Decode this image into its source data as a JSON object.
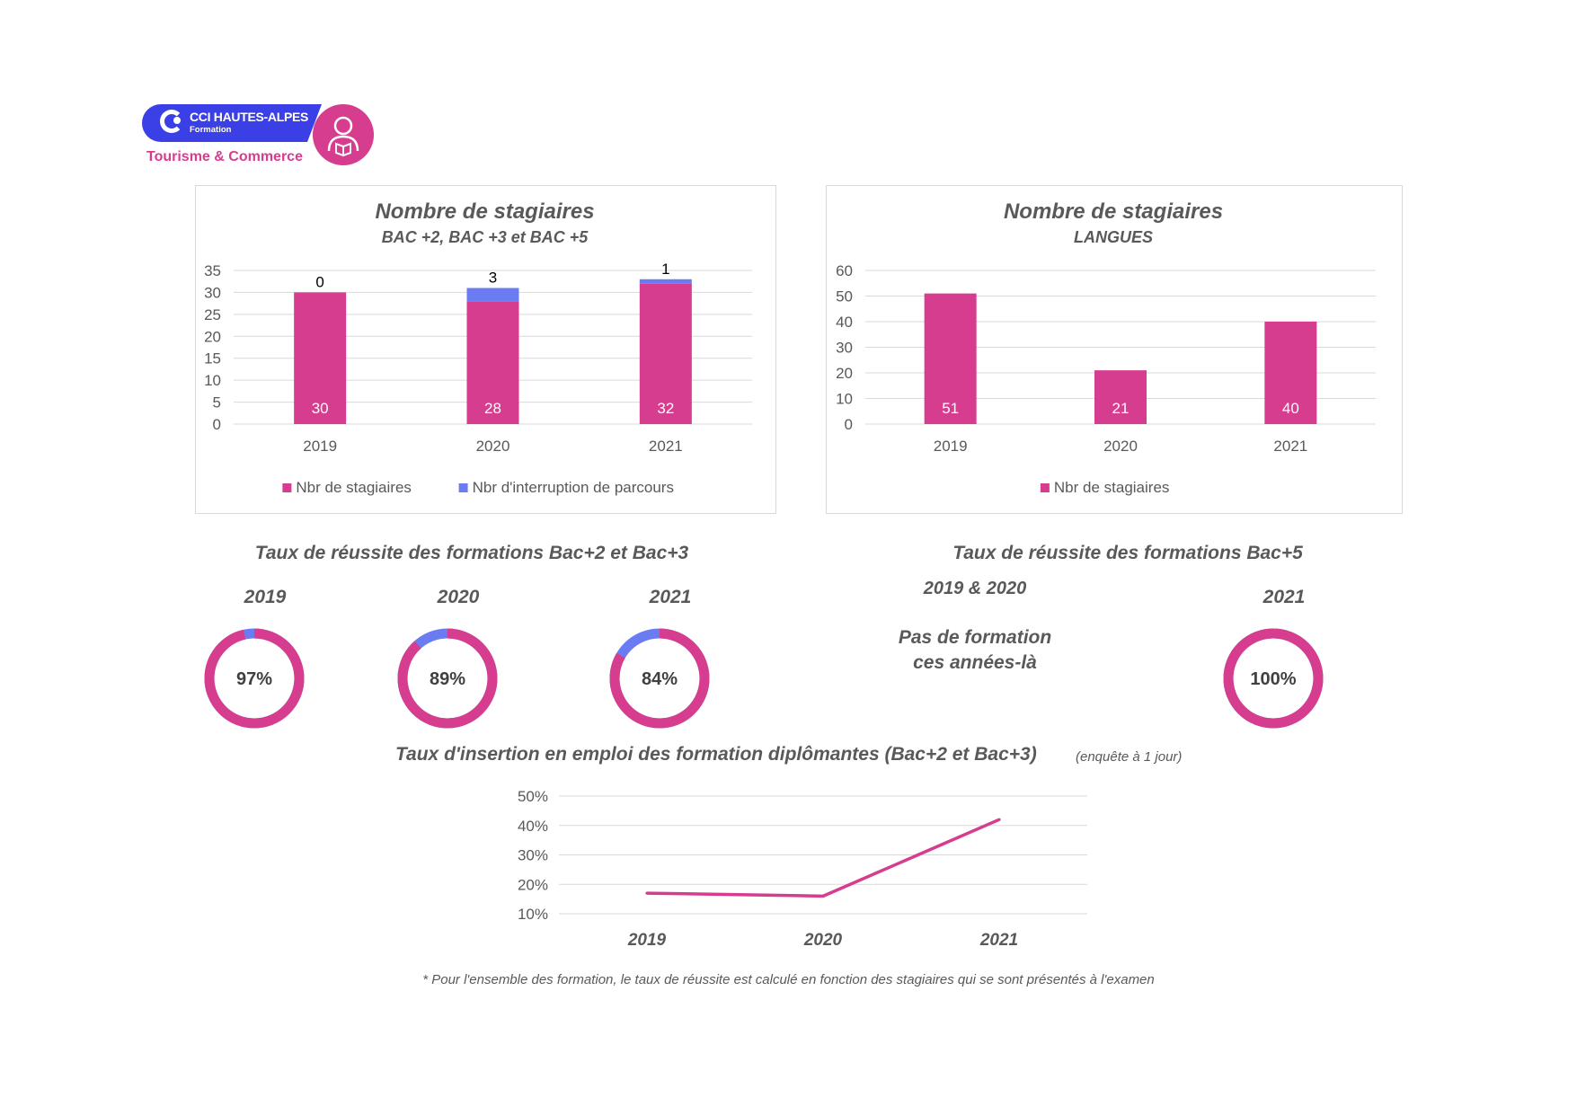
{
  "logo": {
    "brand": "CCI HAUTES-ALPES",
    "sub": "Formation",
    "tagline": "Tourisme & Commerce",
    "icon": "person-book-icon"
  },
  "colors": {
    "pink": "#d63d8f",
    "blue": "#6b7cf2",
    "grid": "#d9d9d9",
    "text": "#595959"
  },
  "chart1": {
    "title": "Nombre de stagiaires",
    "subtitle": "BAC +2, BAC +3 et BAC +5"
  },
  "chart2": {
    "title": "Nombre de stagiaires",
    "subtitle": "LANGUES"
  },
  "success1": {
    "title": "Taux de réussite des formations Bac+2 et Bac+3"
  },
  "success2": {
    "title": "Taux de réussite des formations Bac+5",
    "years_label": "2019 & 2020",
    "message_line1": "Pas de formation",
    "message_line2": "ces années-là"
  },
  "chart3": {
    "title": "Taux d'insertion en emploi des formation diplômantes (Bac+2 et Bac+3)",
    "note": "(enquête à 1 jour)"
  },
  "footnote": "* Pour l'ensemble des formation, le taux de réussite est calculé en fonction des stagiaires qui se sont présentés à l'examen",
  "chart_data": [
    {
      "type": "bar",
      "stacked": true,
      "title": "Nombre de stagiaires",
      "subtitle": "BAC +2, BAC +3 et BAC +5",
      "categories": [
        "2019",
        "2020",
        "2021"
      ],
      "series": [
        {
          "name": "Nbr de stagiaires",
          "values": [
            30,
            28,
            32
          ],
          "color": "#d63d8f"
        },
        {
          "name": "Nbr d'interruption de parcours",
          "values": [
            0,
            3,
            1
          ],
          "color": "#6b7cf2"
        }
      ],
      "ylim": [
        0,
        35
      ],
      "yticks": [
        0,
        5,
        10,
        15,
        20,
        25,
        30,
        35
      ],
      "grid": true,
      "legend": "bottom"
    },
    {
      "type": "bar",
      "title": "Nombre de stagiaires",
      "subtitle": "LANGUES",
      "categories": [
        "2019",
        "2020",
        "2021"
      ],
      "series": [
        {
          "name": "Nbr de stagiaires",
          "values": [
            51,
            21,
            40
          ],
          "color": "#d63d8f"
        }
      ],
      "ylim": [
        0,
        60
      ],
      "yticks": [
        0,
        10,
        20,
        30,
        40,
        50,
        60
      ],
      "grid": true,
      "legend": "bottom"
    },
    {
      "type": "pie",
      "donut": true,
      "title": "Taux de réussite des formations Bac+2 et Bac+3",
      "items": [
        {
          "year": "2019",
          "value": 97,
          "label": "97%"
        },
        {
          "year": "2020",
          "value": 89,
          "label": "89%"
        },
        {
          "year": "2021",
          "value": 84,
          "label": "84%"
        }
      ],
      "colors": [
        "#d63d8f",
        "#6b7cf2"
      ]
    },
    {
      "type": "pie",
      "donut": true,
      "title": "Taux de réussite des formations Bac+5",
      "items": [
        {
          "year": "2021",
          "value": 100,
          "label": "100%"
        }
      ],
      "colors": [
        "#d63d8f",
        "#6b7cf2"
      ]
    },
    {
      "type": "line",
      "title": "Taux d'insertion en emploi des formation diplômantes (Bac+2 et Bac+3)",
      "categories": [
        "2019",
        "2020",
        "2021"
      ],
      "series": [
        {
          "values": [
            0.17,
            0.16,
            0.42
          ],
          "color": "#d63d8f"
        }
      ],
      "ylim": [
        0.1,
        0.5
      ],
      "yticks": [
        "10%",
        "20%",
        "30%",
        "40%",
        "50%"
      ],
      "grid": true
    }
  ]
}
